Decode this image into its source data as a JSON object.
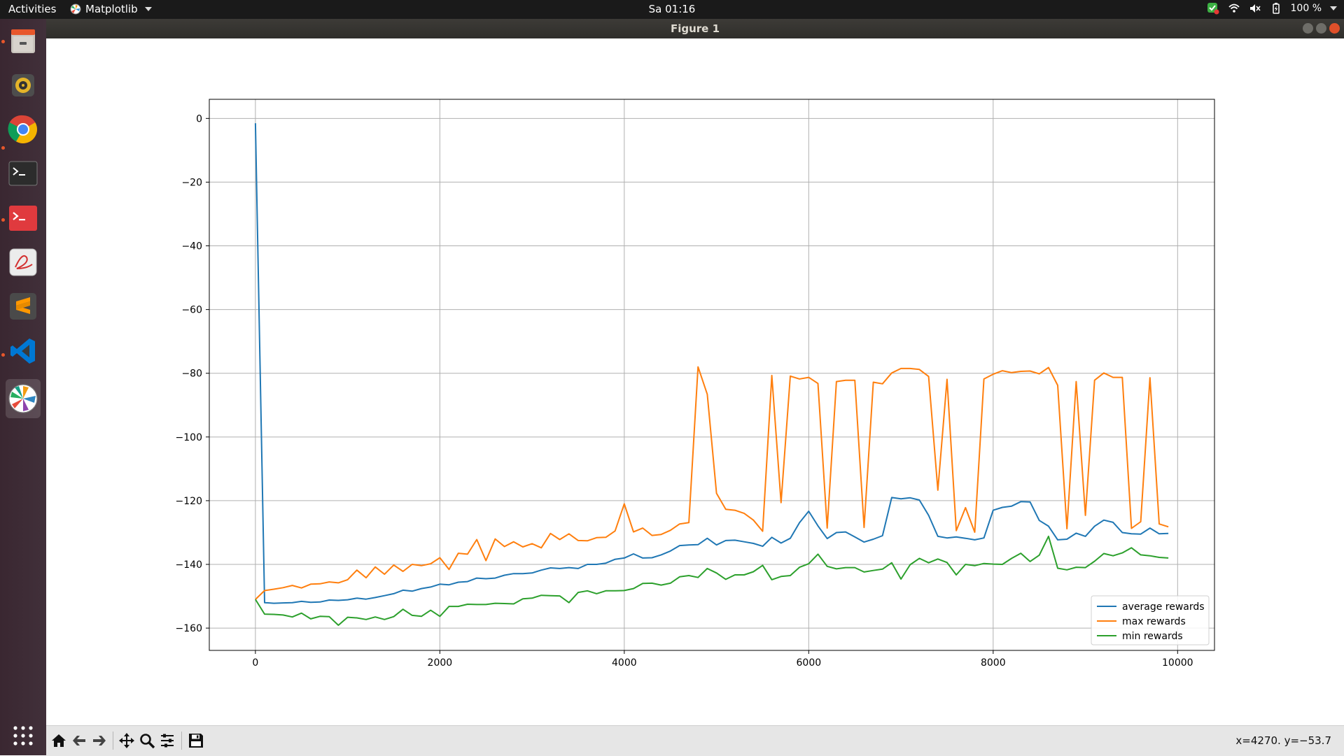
{
  "topbar": {
    "activities": "Activities",
    "app_name": "Matplotlib",
    "clock": "Sa 01:16",
    "battery": "100 %"
  },
  "window": {
    "title": "Figure 1"
  },
  "dock": {
    "items": [
      {
        "name": "files",
        "icon": "file-cabinet-icon",
        "running": true
      },
      {
        "name": "rhythmbox",
        "icon": "speaker-icon",
        "running": false
      },
      {
        "name": "chrome",
        "icon": "chrome-icon",
        "running": true
      },
      {
        "name": "terminal",
        "icon": "terminal-icon",
        "running": false
      },
      {
        "name": "red-terminal",
        "icon": "terminal-red-icon",
        "running": true
      },
      {
        "name": "pdf-viewer",
        "icon": "pdf-icon",
        "running": false
      },
      {
        "name": "sublime-text",
        "icon": "sublime-icon",
        "running": false
      },
      {
        "name": "vscode",
        "icon": "vscode-icon",
        "running": true
      },
      {
        "name": "matplotlib",
        "icon": "matplotlib-icon",
        "running": true,
        "active": true
      }
    ],
    "apps_grid_icon": "grid-icon"
  },
  "toolbar": {
    "buttons": [
      "home-icon",
      "back-icon",
      "forward-icon",
      "pan-icon",
      "zoom-icon",
      "configure-icon",
      "save-icon"
    ],
    "coords": "x=4270. y=−53.7"
  },
  "chart_data": {
    "type": "line",
    "title": "",
    "xlabel": "",
    "ylabel": "",
    "xlim": [
      -500,
      10400
    ],
    "ylim": [
      -167,
      6
    ],
    "xticks": [
      0,
      2000,
      4000,
      6000,
      8000,
      10000
    ],
    "xtick_labels": [
      "0",
      "2000",
      "4000",
      "6000",
      "8000",
      "10000"
    ],
    "yticks": [
      0,
      -20,
      -40,
      -60,
      -80,
      -100,
      -120,
      -140,
      -160
    ],
    "ytick_labels": [
      "0",
      "−20",
      "−40",
      "−60",
      "−80",
      "−100",
      "−120",
      "−140",
      "−160"
    ],
    "grid": true,
    "legend_position": "lower-right",
    "x": [
      0,
      100,
      200,
      300,
      400,
      500,
      600,
      700,
      800,
      900,
      1000,
      1100,
      1200,
      1300,
      1400,
      1500,
      1600,
      1700,
      1800,
      1900,
      2000,
      2100,
      2200,
      2300,
      2400,
      2500,
      2600,
      2700,
      2800,
      2900,
      3000,
      3100,
      3200,
      3300,
      3400,
      3500,
      3600,
      3700,
      3800,
      3900,
      4000,
      4100,
      4200,
      4300,
      4400,
      4500,
      4600,
      4700,
      4800,
      4900,
      5000,
      5100,
      5200,
      5300,
      5400,
      5500,
      5600,
      5700,
      5800,
      5900,
      6000,
      6100,
      6200,
      6300,
      6400,
      6500,
      6600,
      6700,
      6800,
      6900,
      7000,
      7100,
      7200,
      7300,
      7400,
      7500,
      7600,
      7700,
      7800,
      7900,
      8000,
      8100,
      8200,
      8300,
      8400,
      8500,
      8600,
      8700,
      8800,
      8900,
      9000,
      9100,
      9200,
      9300,
      9400,
      9500,
      9600,
      9700,
      9800,
      9900
    ],
    "series": [
      {
        "name": "average rewards",
        "color": "#1f77b4",
        "values": [
          -1.5,
          -152,
          -152.2,
          -152.1,
          -152,
          -151.6,
          -151.9,
          -151.8,
          -151.2,
          -151.3,
          -151.1,
          -150.6,
          -150.9,
          -150.4,
          -149.8,
          -149.2,
          -148.1,
          -148.4,
          -147.6,
          -147.1,
          -146.2,
          -146.4,
          -145.6,
          -145.4,
          -144.3,
          -144.5,
          -144.3,
          -143.4,
          -142.9,
          -142.9,
          -142.7,
          -141.8,
          -141.1,
          -141.3,
          -141.0,
          -141.3,
          -140.0,
          -140.0,
          -139.6,
          -138.4,
          -138.0,
          -136.7,
          -138.0,
          -137.9,
          -137.0,
          -135.8,
          -134.1,
          -133.9,
          -133.8,
          -131.8,
          -133.9,
          -132.5,
          -132.4,
          -132.9,
          -133.4,
          -134.3,
          -131.5,
          -133.3,
          -131.8,
          -126.9,
          -123.3,
          -127.9,
          -131.9,
          -130.0,
          -129.8,
          -131.4,
          -133.0,
          -132.1,
          -131.0,
          -119.0,
          -119.4,
          -119.1,
          -119.8,
          -124.6,
          -131.2,
          -131.7,
          -131.4,
          -131.8,
          -132.3,
          -131.7,
          -123.0,
          -122.1,
          -121.7,
          -120.3,
          -120.4,
          -126.2,
          -128.0,
          -132.3,
          -132.1,
          -130.2,
          -131.2,
          -128.0,
          -126.1,
          -126.8,
          -130.0,
          -130.4,
          -130.5,
          -128.6,
          -130.4,
          -130.3
        ]
      },
      {
        "name": "max rewards",
        "color": "#ff7f0e",
        "values": [
          -151,
          -148.2,
          -147.8,
          -147.3,
          -146.6,
          -147.4,
          -146.2,
          -146.1,
          -145.5,
          -145.8,
          -144.8,
          -141.8,
          -144.2,
          -140.8,
          -143.1,
          -140.2,
          -142.2,
          -140.0,
          -140.4,
          -139.8,
          -137.9,
          -141.6,
          -136.5,
          -136.8,
          -132.2,
          -138.8,
          -132.0,
          -134.4,
          -132.9,
          -134.5,
          -133.5,
          -134.8,
          -130.3,
          -132.2,
          -130.4,
          -132.5,
          -132.6,
          -131.6,
          -131.5,
          -129.5,
          -121.0,
          -129.8,
          -128.6,
          -130.9,
          -130.6,
          -129.3,
          -127.3,
          -126.9,
          -78.0,
          -86.6,
          -117.7,
          -122.7,
          -123.0,
          -124.0,
          -126.1,
          -129.6,
          -80.7,
          -120.6,
          -80.9,
          -81.8,
          -81.3,
          -83.2,
          -128.6,
          -82.6,
          -82.2,
          -82.2,
          -128.4,
          -82.8,
          -83.3,
          -79.9,
          -78.5,
          -78.5,
          -78.8,
          -81.0,
          -116.7,
          -81.9,
          -129.4,
          -122.2,
          -129.9,
          -81.8,
          -80.3,
          -79.2,
          -79.8,
          -79.4,
          -79.3,
          -80.2,
          -78.2,
          -83.8,
          -128.8,
          -82.6,
          -124.6,
          -82.2,
          -79.9,
          -81.3,
          -81.3,
          -128.7,
          -126.6,
          -81.4,
          -127.3,
          -128.2
        ]
      },
      {
        "name": "min rewards",
        "color": "#2ca02c",
        "values": [
          -151,
          -155.6,
          -155.7,
          -155.9,
          -156.5,
          -155.3,
          -157.1,
          -156.3,
          -156.4,
          -159.1,
          -156.6,
          -156.8,
          -157.3,
          -156.5,
          -157.3,
          -156.4,
          -154.1,
          -156.0,
          -156.3,
          -154.4,
          -156.3,
          -153.2,
          -153.2,
          -152.5,
          -152.6,
          -152.6,
          -152.2,
          -152.3,
          -152.4,
          -150.8,
          -150.6,
          -149.7,
          -149.8,
          -149.9,
          -152.0,
          -148.8,
          -148.3,
          -149.2,
          -148.3,
          -148.3,
          -148.2,
          -147.6,
          -146.0,
          -145.9,
          -146.5,
          -145.9,
          -143.9,
          -143.5,
          -144.1,
          -141.3,
          -142.7,
          -144.7,
          -143.3,
          -143.3,
          -142.3,
          -140.3,
          -144.8,
          -143.8,
          -143.5,
          -140.9,
          -139.8,
          -136.8,
          -140.6,
          -141.4,
          -141.0,
          -141.0,
          -142.4,
          -141.9,
          -141.5,
          -139.5,
          -144.6,
          -140.1,
          -138.1,
          -139.5,
          -138.3,
          -139.4,
          -143.3,
          -140.0,
          -140.4,
          -139.7,
          -139.9,
          -140.0,
          -138.1,
          -136.5,
          -139.1,
          -137.1,
          -131.2,
          -141.2,
          -141.7,
          -140.9,
          -141.0,
          -139.0,
          -136.6,
          -137.3,
          -136.4,
          -134.8,
          -137.0,
          -137.3,
          -137.8,
          -138.0
        ]
      }
    ]
  }
}
